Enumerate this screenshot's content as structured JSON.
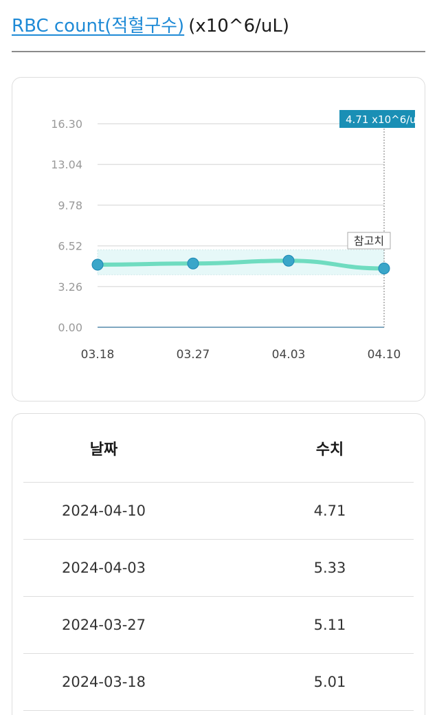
{
  "header": {
    "title_link": "RBC count(적혈구수)",
    "title_unit": "(x10^6/uL)"
  },
  "chart_data": {
    "type": "line",
    "x": [
      "03.18",
      "03.27",
      "04.03",
      "04.10"
    ],
    "series": [
      {
        "values": [
          5.01,
          5.11,
          5.33,
          4.71
        ]
      }
    ],
    "y_ticks": [
      "16.30",
      "13.04",
      "9.78",
      "6.52",
      "3.26",
      "0.00"
    ],
    "ylim": [
      0,
      16.3
    ],
    "reference_range": [
      4.2,
      6.2
    ],
    "reference_label": "참고치",
    "tooltip": "4.71 x10^6/uL",
    "grid": true,
    "colors": {
      "line": "#6fdcc0",
      "point": "#3aa6c9",
      "point_edge": "#1a86b3",
      "tooltip_bg": "#1a8fb5",
      "band": "#e6f8f8",
      "grid": "#e0e0e0",
      "tick": "#999999"
    }
  },
  "table": {
    "headers": [
      "날짜",
      "수치"
    ],
    "rows": [
      {
        "date": "2024-04-10",
        "value": "4.71"
      },
      {
        "date": "2024-04-03",
        "value": "5.33"
      },
      {
        "date": "2024-03-27",
        "value": "5.11"
      },
      {
        "date": "2024-03-18",
        "value": "5.01"
      }
    ]
  }
}
